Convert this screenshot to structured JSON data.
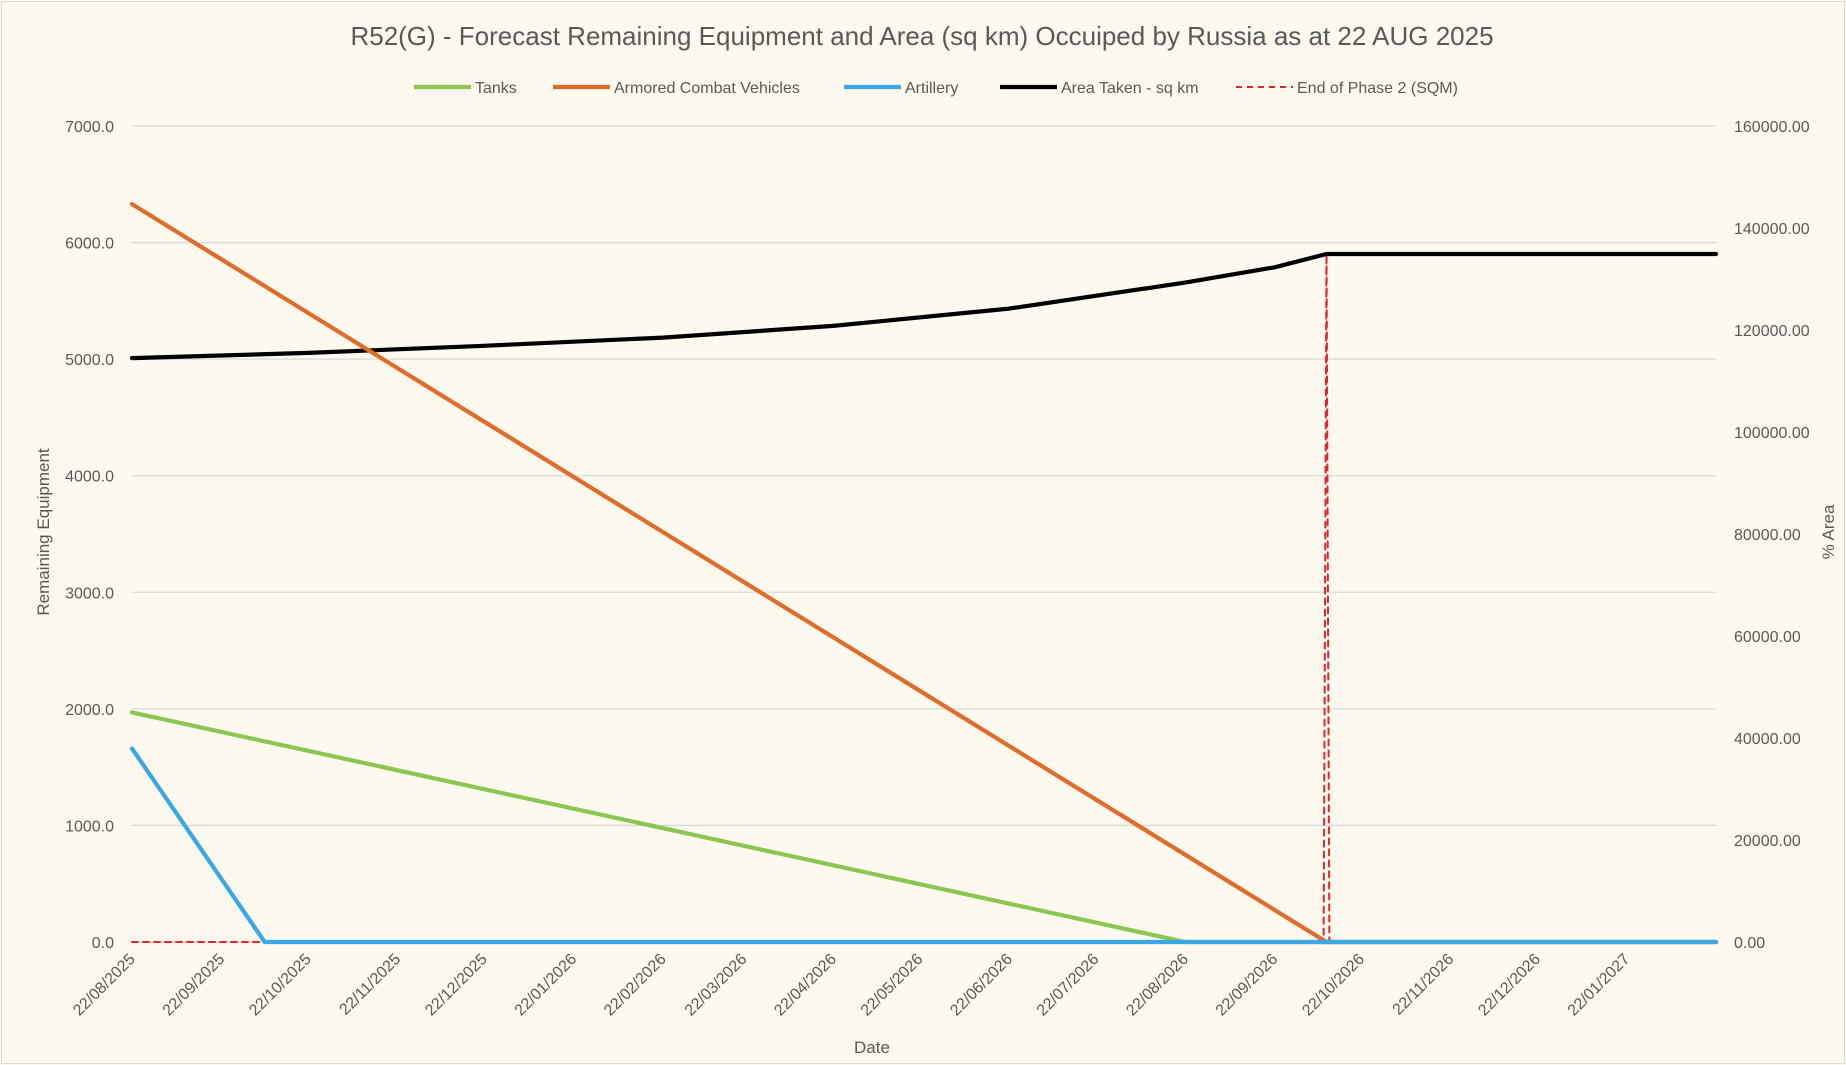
{
  "chart_data": {
    "type": "line",
    "title": "R52(G) - Forecast Remaining Equipment and Area (sq km) Occuiped by Russia as at 22 AUG 2025",
    "xlabel": "Date",
    "ylabel": "Remaining Equipment",
    "y2label": "% Area",
    "ylim": [
      0,
      7000
    ],
    "y2lim": [
      0,
      160000
    ],
    "xlim": [
      "2025-08-22",
      "2027-02-22"
    ],
    "grid": true,
    "legend_position": "top",
    "x_tick_labels": [
      "22/08/2025",
      "22/09/2025",
      "22/10/2025",
      "22/11/2025",
      "22/12/2025",
      "22/01/2026",
      "22/02/2026",
      "22/03/2026",
      "22/04/2026",
      "22/05/2026",
      "22/06/2026",
      "22/07/2026",
      "22/08/2026",
      "22/09/2026",
      "22/10/2026",
      "22/11/2026",
      "22/12/2026",
      "22/01/2027"
    ],
    "y_tick_labels": [
      "0.0",
      "1000.0",
      "2000.0",
      "3000.0",
      "4000.0",
      "5000.0",
      "6000.0",
      "7000.0"
    ],
    "y2_tick_labels": [
      "0.00",
      "20000.00",
      "40000.00",
      "60000.00",
      "80000.00",
      "100000.00",
      "120000.00",
      "140000.00",
      "160000.00"
    ],
    "series": [
      {
        "name": "Tanks",
        "axis": "left",
        "color": "#8ac650",
        "style": "solid",
        "points": [
          [
            "2025-08-22",
            1970
          ],
          [
            "2026-08-22",
            0
          ],
          [
            "2027-02-22",
            0
          ]
        ]
      },
      {
        "name": "Armored Combat Vehicles",
        "axis": "left",
        "color": "#e06b2b",
        "style": "solid",
        "points": [
          [
            "2025-08-22",
            6330
          ],
          [
            "2026-10-10",
            0
          ],
          [
            "2027-02-22",
            0
          ]
        ]
      },
      {
        "name": "Artillery",
        "axis": "left",
        "color": "#3aa7e6",
        "style": "solid",
        "points": [
          [
            "2025-08-22",
            1660
          ],
          [
            "2025-10-07",
            0
          ],
          [
            "2027-02-22",
            0
          ]
        ]
      },
      {
        "name": "Area Taken - sq km",
        "axis": "right",
        "color": "#000000",
        "style": "solid",
        "points": [
          [
            "2025-08-22",
            114500
          ],
          [
            "2025-10-22",
            115500
          ],
          [
            "2025-12-22",
            116900
          ],
          [
            "2026-02-22",
            118500
          ],
          [
            "2026-04-22",
            120800
          ],
          [
            "2026-06-22",
            124200
          ],
          [
            "2026-08-22",
            129300
          ],
          [
            "2026-09-22",
            132300
          ],
          [
            "2026-10-10",
            134900
          ],
          [
            "2027-02-22",
            134900
          ]
        ]
      },
      {
        "name": "End of Phase 2 (SQM)",
        "axis": "right",
        "color": "#e0262a",
        "style": "dashed",
        "points": [
          [
            "2025-08-22",
            0
          ],
          [
            "2026-10-09",
            0
          ],
          [
            "2026-10-10",
            134900
          ],
          [
            "2026-10-11",
            0
          ],
          [
            "2027-02-22",
            0
          ]
        ]
      }
    ]
  }
}
